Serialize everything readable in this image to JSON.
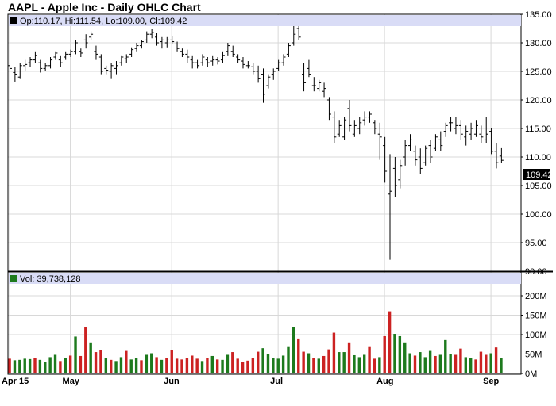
{
  "title": "AAPL - Apple Inc - Daily OHLC Chart",
  "legend": {
    "price": "Op:110.17, Hi:111.54, Lo:109.00, Cl:109.42",
    "volume": "Vol: 39,738,128"
  },
  "last_price_label": "109.42",
  "colors": {
    "frame": "#000000",
    "legend_bg": "#d9dcf6",
    "grid": "#d8d8d8",
    "price_bar": "#000000",
    "volume_up": "#1d7a1d",
    "volume_down": "#cc2222",
    "last_price_bg": "#000000",
    "legend_square_price": "#000000",
    "legend_square_volume": "#1d7a1d"
  },
  "chart_data": [
    {
      "type": "ohlc",
      "title": "AAPL - Apple Inc - Daily OHLC Chart",
      "xlabel": "",
      "ylabel": "",
      "ylim": [
        90,
        135
      ],
      "yticks": [
        "135.00",
        "130.00",
        "125.00",
        "120.00",
        "115.00",
        "110.00",
        "105.00",
        "100.00",
        "95.00",
        "90.00"
      ],
      "x_ticks": [
        {
          "label": "Apr 15",
          "index": 0
        },
        {
          "label": "May",
          "index": 12
        },
        {
          "label": "Jun",
          "index": 32
        },
        {
          "label": "Jul",
          "index": 53
        },
        {
          "label": "Aug",
          "index": 74
        },
        {
          "label": "Sep",
          "index": 95
        }
      ],
      "grid": true,
      "ohlc": [
        [
          126.0,
          126.8,
          124.5,
          125.5
        ],
        [
          124.8,
          125.8,
          123.2,
          124.5
        ],
        [
          124.0,
          126.5,
          123.8,
          126.0
        ],
        [
          126.0,
          127.0,
          125.0,
          126.2
        ],
        [
          126.5,
          127.5,
          125.8,
          127.0
        ],
        [
          127.0,
          128.5,
          126.5,
          127.8
        ],
        [
          126.5,
          127.0,
          124.8,
          125.5
        ],
        [
          125.5,
          126.5,
          125.0,
          126.0
        ],
        [
          126.0,
          127.5,
          125.5,
          127.0
        ],
        [
          127.5,
          128.5,
          127.0,
          128.2
        ],
        [
          127.0,
          127.8,
          125.8,
          126.5
        ],
        [
          127.5,
          128.5,
          127.0,
          128.0
        ],
        [
          128.0,
          128.8,
          127.5,
          128.5
        ],
        [
          128.5,
          130.5,
          128.0,
          130.0
        ],
        [
          128.5,
          129.0,
          127.5,
          128.2
        ],
        [
          130.5,
          131.5,
          129.0,
          130.0
        ],
        [
          131.0,
          132.0,
          130.5,
          131.5
        ],
        [
          128.5,
          129.5,
          127.0,
          128.0
        ],
        [
          127.5,
          128.0,
          124.5,
          125.0
        ],
        [
          125.5,
          126.0,
          124.5,
          125.2
        ],
        [
          125.0,
          126.5,
          123.8,
          126.0
        ],
        [
          125.5,
          126.8,
          124.5,
          126.0
        ],
        [
          126.5,
          127.8,
          126.0,
          127.5
        ],
        [
          127.2,
          128.0,
          126.5,
          127.5
        ],
        [
          128.0,
          129.2,
          127.5,
          128.8
        ],
        [
          129.0,
          130.0,
          128.5,
          129.5
        ],
        [
          129.5,
          130.5,
          129.0,
          130.2
        ],
        [
          130.5,
          132.0,
          130.0,
          131.5
        ],
        [
          131.5,
          132.5,
          130.8,
          131.8
        ],
        [
          131.0,
          131.8,
          129.5,
          130.0
        ],
        [
          130.2,
          131.0,
          129.0,
          130.5
        ],
        [
          130.0,
          131.0,
          129.2,
          130.5
        ],
        [
          130.5,
          131.2,
          129.8,
          130.2
        ],
        [
          129.8,
          130.2,
          128.5,
          129.0
        ],
        [
          128.5,
          129.0,
          127.5,
          128.0
        ],
        [
          128.0,
          128.8,
          126.5,
          127.5
        ],
        [
          127.0,
          127.8,
          125.5,
          126.5
        ],
        [
          126.5,
          127.0,
          125.5,
          126.0
        ],
        [
          126.5,
          128.0,
          126.0,
          127.5
        ],
        [
          127.0,
          127.5,
          125.8,
          126.5
        ],
        [
          126.8,
          127.8,
          126.0,
          127.0
        ],
        [
          127.0,
          127.5,
          126.2,
          126.8
        ],
        [
          127.0,
          128.5,
          126.5,
          127.8
        ],
        [
          128.5,
          130.0,
          127.8,
          129.5
        ],
        [
          128.5,
          129.5,
          127.5,
          128.0
        ],
        [
          127.5,
          128.0,
          126.5,
          127.0
        ],
        [
          126.8,
          127.5,
          125.5,
          126.2
        ],
        [
          126.0,
          126.8,
          125.5,
          126.0
        ],
        [
          125.8,
          126.5,
          124.5,
          125.0
        ],
        [
          125.0,
          126.0,
          123.0,
          123.8
        ],
        [
          124.5,
          125.5,
          119.5,
          121.0
        ],
        [
          122.5,
          124.5,
          122.0,
          124.0
        ],
        [
          124.5,
          125.5,
          123.5,
          125.0
        ],
        [
          125.5,
          127.0,
          125.0,
          126.5
        ],
        [
          126.5,
          128.0,
          126.0,
          127.5
        ],
        [
          128.0,
          130.0,
          127.5,
          129.5
        ],
        [
          130.0,
          133.0,
          129.5,
          131.5
        ],
        [
          132.5,
          133.5,
          130.5,
          131.0
        ],
        [
          124.5,
          126.5,
          121.5,
          123.0
        ],
        [
          125.5,
          127.0,
          124.0,
          124.5
        ],
        [
          122.5,
          124.0,
          121.5,
          122.5
        ],
        [
          122.0,
          123.5,
          121.5,
          123.0
        ],
        [
          121.5,
          123.0,
          120.5,
          122.0
        ],
        [
          120.0,
          120.5,
          116.5,
          117.5
        ],
        [
          117.0,
          118.0,
          112.5,
          113.5
        ],
        [
          114.0,
          116.5,
          113.5,
          115.5
        ],
        [
          113.5,
          117.0,
          113.0,
          116.5
        ],
        [
          118.5,
          120.0,
          114.5,
          115.5
        ],
        [
          114.0,
          116.5,
          113.5,
          115.5
        ],
        [
          115.0,
          117.0,
          114.0,
          116.0
        ],
        [
          116.5,
          118.0,
          115.5,
          117.0
        ],
        [
          117.0,
          118.0,
          116.0,
          117.5
        ],
        [
          116.0,
          116.5,
          114.0,
          115.0
        ],
        [
          114.0,
          116.0,
          109.5,
          113.5
        ],
        [
          112.0,
          113.5,
          105.5,
          107.5
        ],
        [
          103.5,
          110.5,
          92.0,
          104.0
        ],
        [
          108.0,
          110.0,
          103.0,
          105.0
        ],
        [
          106.0,
          109.5,
          104.5,
          108.5
        ],
        [
          110.0,
          113.0,
          108.5,
          112.0
        ],
        [
          112.0,
          114.0,
          111.0,
          113.0
        ],
        [
          111.0,
          112.0,
          108.5,
          109.5
        ],
        [
          110.0,
          111.5,
          107.0,
          108.0
        ],
        [
          109.0,
          112.0,
          108.5,
          111.5
        ],
        [
          112.0,
          113.0,
          109.0,
          110.0
        ],
        [
          111.5,
          114.0,
          111.0,
          113.5
        ],
        [
          113.0,
          114.5,
          111.0,
          112.0
        ],
        [
          114.5,
          116.0,
          113.5,
          115.5
        ],
        [
          116.0,
          117.0,
          114.5,
          116.0
        ],
        [
          115.0,
          117.0,
          114.0,
          115.5
        ],
        [
          115.5,
          116.5,
          113.0,
          114.0
        ],
        [
          113.5,
          115.5,
          112.0,
          114.5
        ],
        [
          114.0,
          116.0,
          113.0,
          115.0
        ],
        [
          114.0,
          116.5,
          113.5,
          115.5
        ],
        [
          114.0,
          115.5,
          112.5,
          113.5
        ],
        [
          113.0,
          117.0,
          112.5,
          114.0
        ],
        [
          114.5,
          115.0,
          110.5,
          111.0
        ],
        [
          111.0,
          112.5,
          108.0,
          109.0
        ],
        [
          110.17,
          111.54,
          109.0,
          109.42
        ]
      ]
    },
    {
      "type": "bar",
      "title": "Vol: 39,738,128",
      "ylim": [
        0,
        200000000
      ],
      "yticks": [
        "200M",
        "150M",
        "100M",
        "50M",
        "0M"
      ],
      "grid": true,
      "series": [
        {
          "values": [
            38,
            34,
            35,
            38,
            37,
            40,
            35,
            30,
            42,
            48,
            32,
            40,
            46,
            95,
            45,
            120,
            80,
            55,
            60,
            40,
            35,
            32,
            42,
            58,
            36,
            40,
            34,
            48,
            52,
            42,
            35,
            40,
            60,
            38,
            36,
            40,
            46,
            38,
            32,
            40,
            45,
            36,
            35,
            48,
            55,
            38,
            30,
            33,
            40,
            56,
            65,
            50,
            40,
            38,
            46,
            70,
            120,
            90,
            56,
            52,
            40,
            38,
            45,
            62,
            105,
            55,
            55,
            80,
            47,
            42,
            48,
            70,
            38,
            42,
            96,
            160,
            102,
            96,
            80,
            52,
            46,
            55,
            42,
            58,
            45,
            48,
            86,
            50,
            48,
            64,
            42,
            40,
            36,
            56,
            48,
            52,
            67,
            39.74
          ]
        },
        {
          "values": [
            0,
            1,
            1,
            1,
            1,
            0,
            1,
            1,
            1,
            1,
            0,
            1,
            0,
            1,
            0,
            0,
            1,
            0,
            0,
            1,
            0,
            1,
            1,
            0,
            1,
            1,
            0,
            1,
            1,
            0,
            1,
            0,
            0,
            0,
            0,
            0,
            0,
            0,
            1,
            0,
            1,
            0,
            1,
            1,
            0,
            0,
            0,
            0,
            0,
            0,
            1,
            1,
            1,
            1,
            1,
            1,
            1,
            0,
            0,
            1,
            0,
            1,
            0,
            0,
            0,
            1,
            1,
            0,
            1,
            1,
            1,
            0,
            0,
            1,
            0,
            0,
            1,
            1,
            1,
            1,
            0,
            1,
            1,
            1,
            0,
            1,
            1,
            1,
            0,
            0,
            1,
            1,
            0,
            0,
            0,
            1,
            0,
            1
          ]
        }
      ]
    }
  ]
}
